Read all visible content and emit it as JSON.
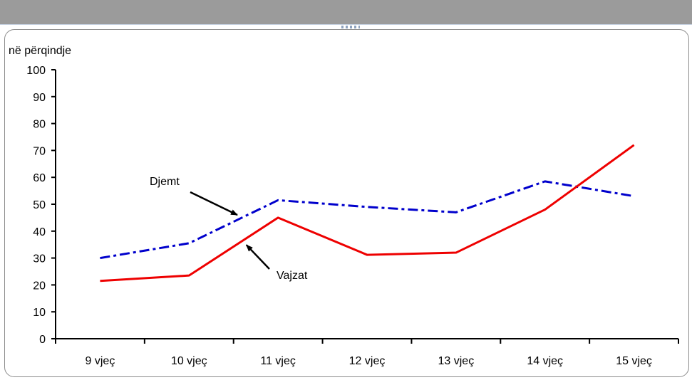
{
  "chart_data": {
    "type": "line",
    "ylabel": "në përqindje",
    "categories": [
      "9 vjeç",
      "10 vjeç",
      "11 vjeç",
      "12 vjeç",
      "13 vjeç",
      "14 vjeç",
      "15 vjeç"
    ],
    "ylim": [
      0,
      100
    ],
    "yticks": [
      0,
      10,
      20,
      30,
      40,
      50,
      60,
      70,
      80,
      90,
      100
    ],
    "grid": false,
    "series": [
      {
        "name": "Djemt",
        "values": [
          30,
          35.5,
          51.5,
          49,
          47,
          58.5,
          53
        ],
        "color": "#0000cc",
        "style": "dash-dot"
      },
      {
        "name": "Vajzat",
        "values": [
          21.5,
          23.5,
          45,
          31.2,
          32,
          48,
          72
        ],
        "color": "#ee0000",
        "style": "solid"
      }
    ],
    "annotations": [
      {
        "text": "Djemt",
        "series": "Djemt"
      },
      {
        "text": "Vajzat",
        "series": "Vajzat"
      }
    ]
  }
}
